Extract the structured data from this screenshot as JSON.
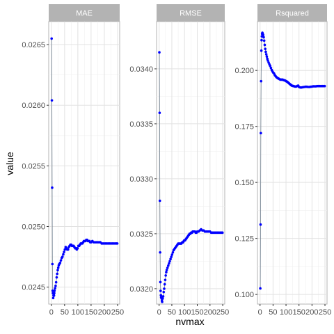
{
  "chart_data": {
    "type": "scatter",
    "xlabel": "nvmax",
    "ylabel": "value",
    "x_ticks": [
      0,
      50,
      100,
      150,
      200,
      250
    ],
    "x_tick_labels": [
      "0",
      "50",
      "100",
      "150",
      "200",
      "250"
    ],
    "xlim": [
      -10,
      258
    ],
    "grid": true,
    "point_color": "#0000ff",
    "line_color": "#6f7f8f",
    "strip_color": "#b3b3b3",
    "panels": [
      {
        "name": "MAE",
        "ylim": [
          0.02436,
          0.02669
        ],
        "y_ticks": [
          0.0245,
          0.025,
          0.0255,
          0.026,
          0.0265
        ],
        "y_tick_labels": [
          "0.0245",
          "0.0250",
          "0.0255",
          "0.0260",
          "0.0265"
        ],
        "points": [
          [
            1,
            0.02655
          ],
          [
            2,
            0.02604
          ],
          [
            3,
            0.02532
          ],
          [
            4,
            0.02469
          ],
          [
            5,
            0.02447
          ],
          [
            6,
            0.02445
          ],
          [
            7,
            0.02441
          ],
          [
            8,
            0.02443
          ],
          [
            9,
            0.02444
          ],
          [
            10,
            0.02443
          ],
          [
            11,
            0.02445
          ],
          [
            12,
            0.02447
          ],
          [
            14,
            0.02449
          ],
          [
            16,
            0.02451
          ],
          [
            18,
            0.02454
          ],
          [
            20,
            0.02458
          ],
          [
            22,
            0.02461
          ],
          [
            24,
            0.02464
          ],
          [
            26,
            0.02466
          ],
          [
            28,
            0.02468
          ],
          [
            30,
            0.02469
          ],
          [
            33,
            0.0247
          ],
          [
            36,
            0.02472
          ],
          [
            39,
            0.02474
          ],
          [
            42,
            0.02475
          ],
          [
            45,
            0.02477
          ],
          [
            48,
            0.02479
          ],
          [
            51,
            0.02481
          ],
          [
            54,
            0.02483
          ],
          [
            57,
            0.02482
          ],
          [
            60,
            0.02481
          ],
          [
            63,
            0.02481
          ],
          [
            66,
            0.02483
          ],
          [
            69,
            0.02484
          ],
          [
            72,
            0.02485
          ],
          [
            75,
            0.02485
          ],
          [
            78,
            0.02484
          ],
          [
            81,
            0.02484
          ],
          [
            84,
            0.02484
          ],
          [
            87,
            0.02483
          ],
          [
            90,
            0.02482
          ],
          [
            93,
            0.02482
          ],
          [
            96,
            0.02481
          ],
          [
            99,
            0.02482
          ],
          [
            102,
            0.02484
          ],
          [
            105,
            0.02484
          ],
          [
            108,
            0.02485
          ],
          [
            111,
            0.02486
          ],
          [
            114,
            0.02486
          ],
          [
            117,
            0.02486
          ],
          [
            120,
            0.02487
          ],
          [
            123,
            0.02488
          ],
          [
            126,
            0.02488
          ],
          [
            129,
            0.02488
          ],
          [
            132,
            0.02489
          ],
          [
            135,
            0.02489
          ],
          [
            138,
            0.02488
          ],
          [
            141,
            0.02488
          ],
          [
            144,
            0.02488
          ],
          [
            147,
            0.02487
          ],
          [
            150,
            0.02487
          ],
          [
            155,
            0.02488
          ],
          [
            160,
            0.02487
          ],
          [
            165,
            0.02487
          ],
          [
            170,
            0.02487
          ],
          [
            175,
            0.02487
          ],
          [
            180,
            0.02487
          ],
          [
            185,
            0.02487
          ],
          [
            190,
            0.02486
          ],
          [
            195,
            0.02486
          ],
          [
            200,
            0.02486
          ],
          [
            205,
            0.02486
          ],
          [
            210,
            0.02486
          ],
          [
            215,
            0.02486
          ],
          [
            220,
            0.02486
          ],
          [
            225,
            0.02486
          ],
          [
            230,
            0.02486
          ],
          [
            235,
            0.02486
          ],
          [
            240,
            0.02486
          ],
          [
            245,
            0.02486
          ],
          [
            249,
            0.02486
          ]
        ]
      },
      {
        "name": "RMSE",
        "ylim": [
          0.03186,
          0.03443
        ],
        "y_ticks": [
          0.032,
          0.0325,
          0.033,
          0.0335,
          0.034
        ],
        "y_tick_labels": [
          "0.0320",
          "0.0325",
          "0.0330",
          "0.0335",
          "0.0340"
        ],
        "points": [
          [
            1,
            0.03415
          ],
          [
            2,
            0.0336
          ],
          [
            3,
            0.0328
          ],
          [
            4,
            0.03233
          ],
          [
            5,
            0.03206
          ],
          [
            6,
            0.03198
          ],
          [
            7,
            0.03194
          ],
          [
            8,
            0.03192
          ],
          [
            9,
            0.03193
          ],
          [
            10,
            0.03191
          ],
          [
            11,
            0.03189
          ],
          [
            12,
            0.03188
          ],
          [
            14,
            0.03191
          ],
          [
            16,
            0.03193
          ],
          [
            18,
            0.03197
          ],
          [
            20,
            0.032
          ],
          [
            22,
            0.03204
          ],
          [
            24,
            0.03208
          ],
          [
            26,
            0.03212
          ],
          [
            28,
            0.03215
          ],
          [
            30,
            0.03217
          ],
          [
            33,
            0.03219
          ],
          [
            36,
            0.03221
          ],
          [
            39,
            0.03223
          ],
          [
            42,
            0.03225
          ],
          [
            45,
            0.03227
          ],
          [
            48,
            0.03229
          ],
          [
            51,
            0.03231
          ],
          [
            54,
            0.03233
          ],
          [
            57,
            0.03235
          ],
          [
            60,
            0.03236
          ],
          [
            63,
            0.03237
          ],
          [
            66,
            0.03238
          ],
          [
            69,
            0.03239
          ],
          [
            72,
            0.0324
          ],
          [
            75,
            0.03241
          ],
          [
            78,
            0.03241
          ],
          [
            81,
            0.03241
          ],
          [
            84,
            0.03241
          ],
          [
            87,
            0.03241
          ],
          [
            90,
            0.03242
          ],
          [
            93,
            0.03242
          ],
          [
            96,
            0.03243
          ],
          [
            99,
            0.03244
          ],
          [
            102,
            0.03244
          ],
          [
            105,
            0.03245
          ],
          [
            108,
            0.03246
          ],
          [
            111,
            0.03247
          ],
          [
            114,
            0.03248
          ],
          [
            117,
            0.03249
          ],
          [
            120,
            0.0325
          ],
          [
            123,
            0.0325
          ],
          [
            126,
            0.03251
          ],
          [
            129,
            0.03251
          ],
          [
            132,
            0.03252
          ],
          [
            135,
            0.03252
          ],
          [
            138,
            0.03252
          ],
          [
            141,
            0.03252
          ],
          [
            144,
            0.03251
          ],
          [
            147,
            0.03251
          ],
          [
            150,
            0.03252
          ],
          [
            155,
            0.03252
          ],
          [
            160,
            0.03253
          ],
          [
            165,
            0.03254
          ],
          [
            170,
            0.03253
          ],
          [
            175,
            0.03253
          ],
          [
            180,
            0.03252
          ],
          [
            185,
            0.03252
          ],
          [
            190,
            0.03252
          ],
          [
            195,
            0.03252
          ],
          [
            200,
            0.03252
          ],
          [
            205,
            0.03251
          ],
          [
            210,
            0.03251
          ],
          [
            215,
            0.03251
          ],
          [
            220,
            0.03251
          ],
          [
            225,
            0.03251
          ],
          [
            230,
            0.03251
          ],
          [
            235,
            0.03251
          ],
          [
            240,
            0.03251
          ],
          [
            245,
            0.03251
          ],
          [
            249,
            0.03251
          ]
        ]
      },
      {
        "name": "Rsquared",
        "ylim": [
          0.0957,
          0.2218
        ],
        "y_ticks": [
          0.1,
          0.125,
          0.15,
          0.175,
          0.2
        ],
        "y_tick_labels": [
          "0.100",
          "0.125",
          "0.150",
          "0.175",
          "0.200"
        ],
        "points": [
          [
            1,
            0.1027
          ],
          [
            2,
            0.1312
          ],
          [
            3,
            0.172
          ],
          [
            4,
            0.1952
          ],
          [
            5,
            0.2088
          ],
          [
            6,
            0.2135
          ],
          [
            7,
            0.2152
          ],
          [
            8,
            0.2163
          ],
          [
            9,
            0.2168
          ],
          [
            10,
            0.2164
          ],
          [
            11,
            0.216
          ],
          [
            12,
            0.2158
          ],
          [
            14,
            0.2148
          ],
          [
            16,
            0.2133
          ],
          [
            18,
            0.2114
          ],
          [
            20,
            0.2096
          ],
          [
            22,
            0.2083
          ],
          [
            24,
            0.2072
          ],
          [
            26,
            0.2062
          ],
          [
            28,
            0.2052
          ],
          [
            30,
            0.2044
          ],
          [
            33,
            0.2035
          ],
          [
            36,
            0.2027
          ],
          [
            39,
            0.202
          ],
          [
            42,
            0.2011
          ],
          [
            45,
            0.2002
          ],
          [
            48,
            0.1995
          ],
          [
            51,
            0.199
          ],
          [
            54,
            0.1986
          ],
          [
            57,
            0.1979
          ],
          [
            60,
            0.1974
          ],
          [
            63,
            0.197
          ],
          [
            66,
            0.1967
          ],
          [
            69,
            0.1965
          ],
          [
            72,
            0.1963
          ],
          [
            75,
            0.1961
          ],
          [
            78,
            0.1959
          ],
          [
            81,
            0.1959
          ],
          [
            84,
            0.1959
          ],
          [
            87,
            0.1959
          ],
          [
            90,
            0.1957
          ],
          [
            93,
            0.1956
          ],
          [
            96,
            0.1955
          ],
          [
            99,
            0.1953
          ],
          [
            102,
            0.1951
          ],
          [
            105,
            0.1949
          ],
          [
            108,
            0.1946
          ],
          [
            111,
            0.1943
          ],
          [
            114,
            0.194
          ],
          [
            117,
            0.1937
          ],
          [
            120,
            0.1934
          ],
          [
            123,
            0.1932
          ],
          [
            126,
            0.1931
          ],
          [
            129,
            0.193
          ],
          [
            132,
            0.1929
          ],
          [
            135,
            0.1928
          ],
          [
            138,
            0.1928
          ],
          [
            141,
            0.1929
          ],
          [
            144,
            0.1931
          ],
          [
            147,
            0.1932
          ],
          [
            150,
            0.1926
          ],
          [
            155,
            0.1924
          ],
          [
            160,
            0.1924
          ],
          [
            165,
            0.1925
          ],
          [
            170,
            0.1926
          ],
          [
            175,
            0.1927
          ],
          [
            180,
            0.1927
          ],
          [
            185,
            0.1926
          ],
          [
            190,
            0.1926
          ],
          [
            195,
            0.1927
          ],
          [
            200,
            0.1928
          ],
          [
            205,
            0.1929
          ],
          [
            210,
            0.1929
          ],
          [
            215,
            0.1929
          ],
          [
            220,
            0.193
          ],
          [
            225,
            0.193
          ],
          [
            230,
            0.193
          ],
          [
            235,
            0.193
          ],
          [
            240,
            0.193
          ],
          [
            245,
            0.193
          ],
          [
            249,
            0.193
          ]
        ]
      }
    ]
  }
}
